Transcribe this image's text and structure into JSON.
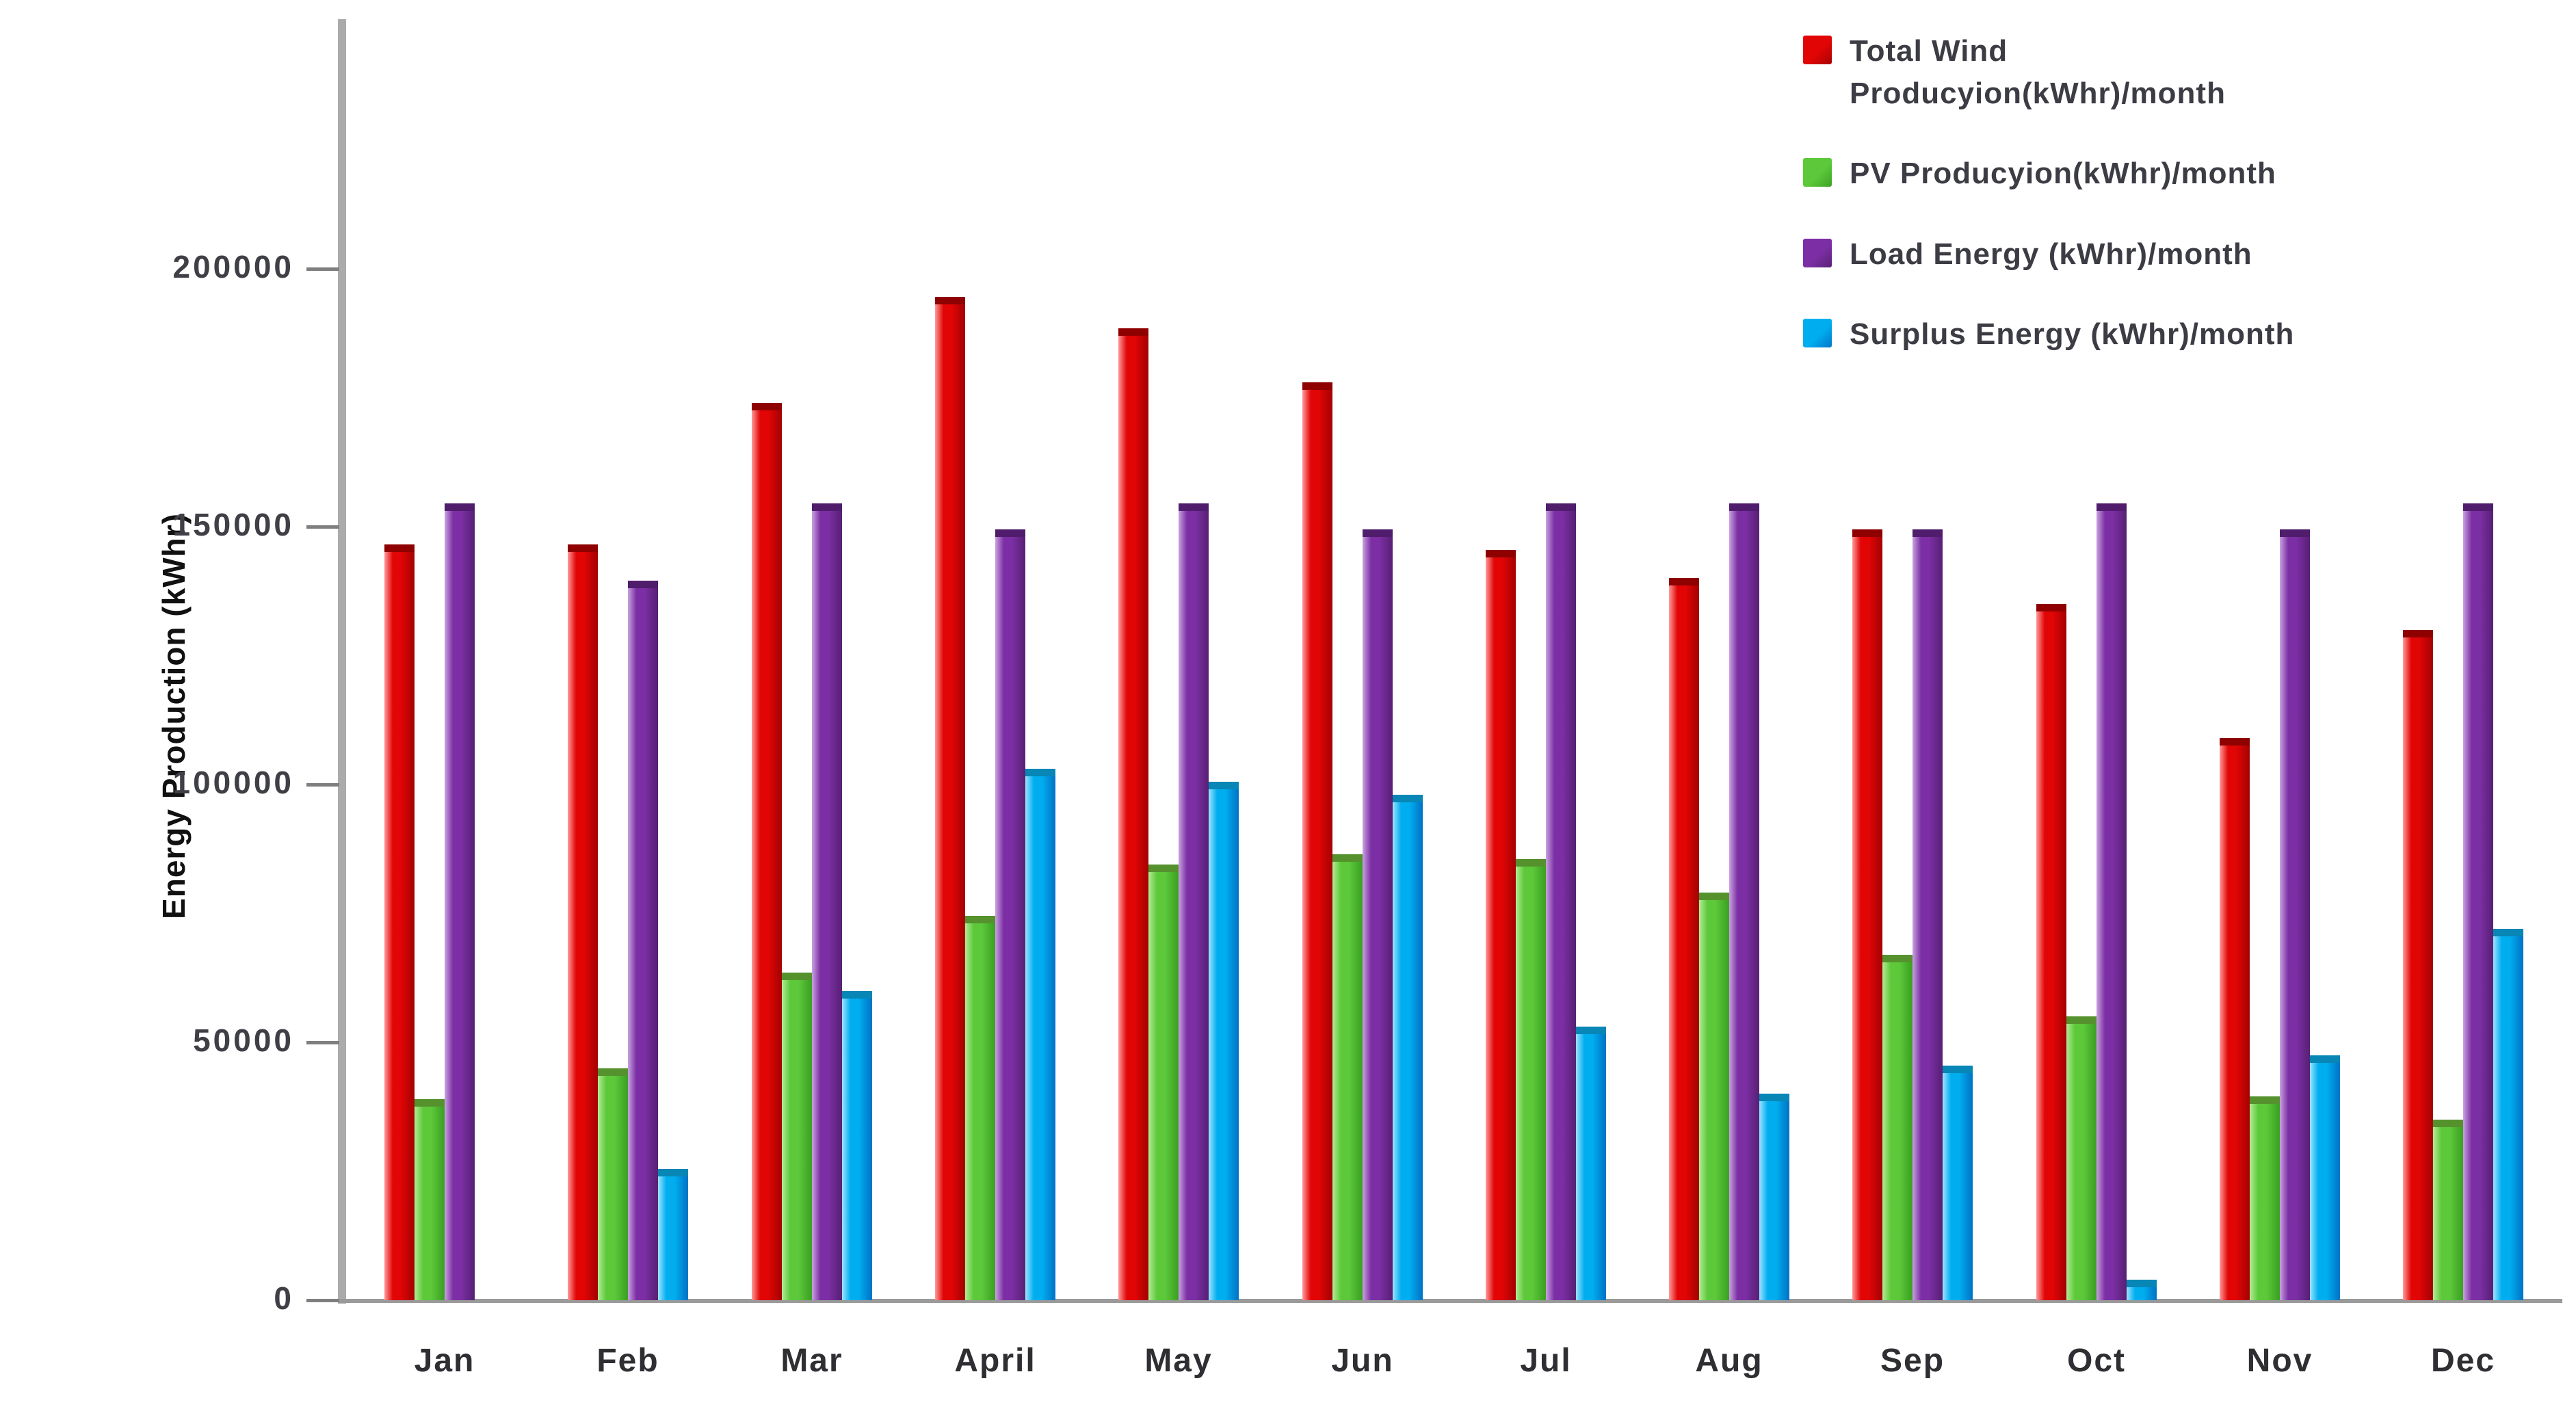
{
  "chart_data": {
    "type": "bar",
    "title": "",
    "xlabel": "",
    "ylabel": "Energy Production (kWhr)",
    "categories": [
      "Jan",
      "Feb",
      "Mar",
      "April",
      "May",
      "Jun",
      "Jul",
      "Aug",
      "Sep",
      "Oct",
      "Nov",
      "Dec"
    ],
    "series": [
      {
        "name": "Total Wind Producyion(kWhr)/month",
        "color": "#e10505",
        "color_light": "#ff9a9a",
        "color_dark": "#a80202",
        "cap_color": "#8f0101",
        "values": [
          146500,
          146500,
          174000,
          194500,
          188500,
          178000,
          145500,
          140000,
          149500,
          135000,
          109000,
          130000
        ]
      },
      {
        "name": "PV Producyion(kWhr)/month",
        "color": "#5dc93a",
        "color_light": "#b4ec96",
        "color_dark": "#3da224",
        "cap_color": "#55922e",
        "values": [
          39000,
          45000,
          63500,
          74500,
          84500,
          86500,
          85500,
          79000,
          67000,
          55000,
          39500,
          35000
        ]
      },
      {
        "name": "Load Energy (kWhr)/month",
        "color": "#7c2fa4",
        "color_light": "#c9a3e0",
        "color_dark": "#5a2178",
        "cap_color": "#4f1d6b",
        "values": [
          154500,
          139500,
          154500,
          149500,
          154500,
          149500,
          154500,
          154500,
          149500,
          154500,
          149500,
          154500
        ]
      },
      {
        "name": "Surplus Energy (kWhr)/month",
        "color": "#00aef0",
        "color_light": "#9fe3ff",
        "color_dark": "#0077c8",
        "cap_color": "#0886b5",
        "values": [
          0,
          25500,
          60000,
          103000,
          100500,
          98000,
          53000,
          40000,
          45500,
          4000,
          47500,
          72000
        ]
      }
    ],
    "y_ticks": [
      0,
      50000,
      100000,
      150000,
      200000
    ],
    "y_tick_labels": [
      "0",
      "50000",
      "100000",
      "150000",
      "200000"
    ],
    "ylim": [
      0,
      245000
    ],
    "grid": false,
    "legend_position": "top-right"
  }
}
